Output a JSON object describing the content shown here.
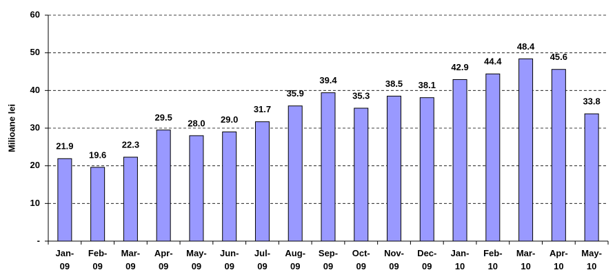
{
  "chart_data": {
    "type": "bar",
    "y_label": "Milioane lei",
    "categories": [
      "Jan-\n09",
      "Feb-\n09",
      "Mar-\n09",
      "Apr-\n09",
      "May-\n09",
      "Jun-\n09",
      "Jul-\n09",
      "Aug-\n09",
      "Sep-\n09",
      "Oct-\n09",
      "Nov-\n09",
      "Dec-\n09",
      "Jan-\n10",
      "Feb-\n10",
      "Mar-\n10",
      "Apr-\n10",
      "May-\n10"
    ],
    "values": [
      21.9,
      19.6,
      22.3,
      29.5,
      28.0,
      29.0,
      31.7,
      35.9,
      39.4,
      35.3,
      38.5,
      38.1,
      42.9,
      44.4,
      48.4,
      45.6,
      33.8
    ],
    "value_labels": [
      "21.9",
      "19.6",
      "22.3",
      "29.5",
      "28.0",
      "29.0",
      "31.7",
      "35.9",
      "39.4",
      "35.3",
      "38.5",
      "38.1",
      "42.9",
      "44.4",
      "48.4",
      "45.6",
      "33.8"
    ],
    "color": "#9999ff",
    "ylim": [
      0,
      60
    ],
    "yticks": [
      {
        "value": 0,
        "label": "-"
      },
      10,
      20,
      30,
      40,
      50,
      60
    ],
    "grid": true
  }
}
